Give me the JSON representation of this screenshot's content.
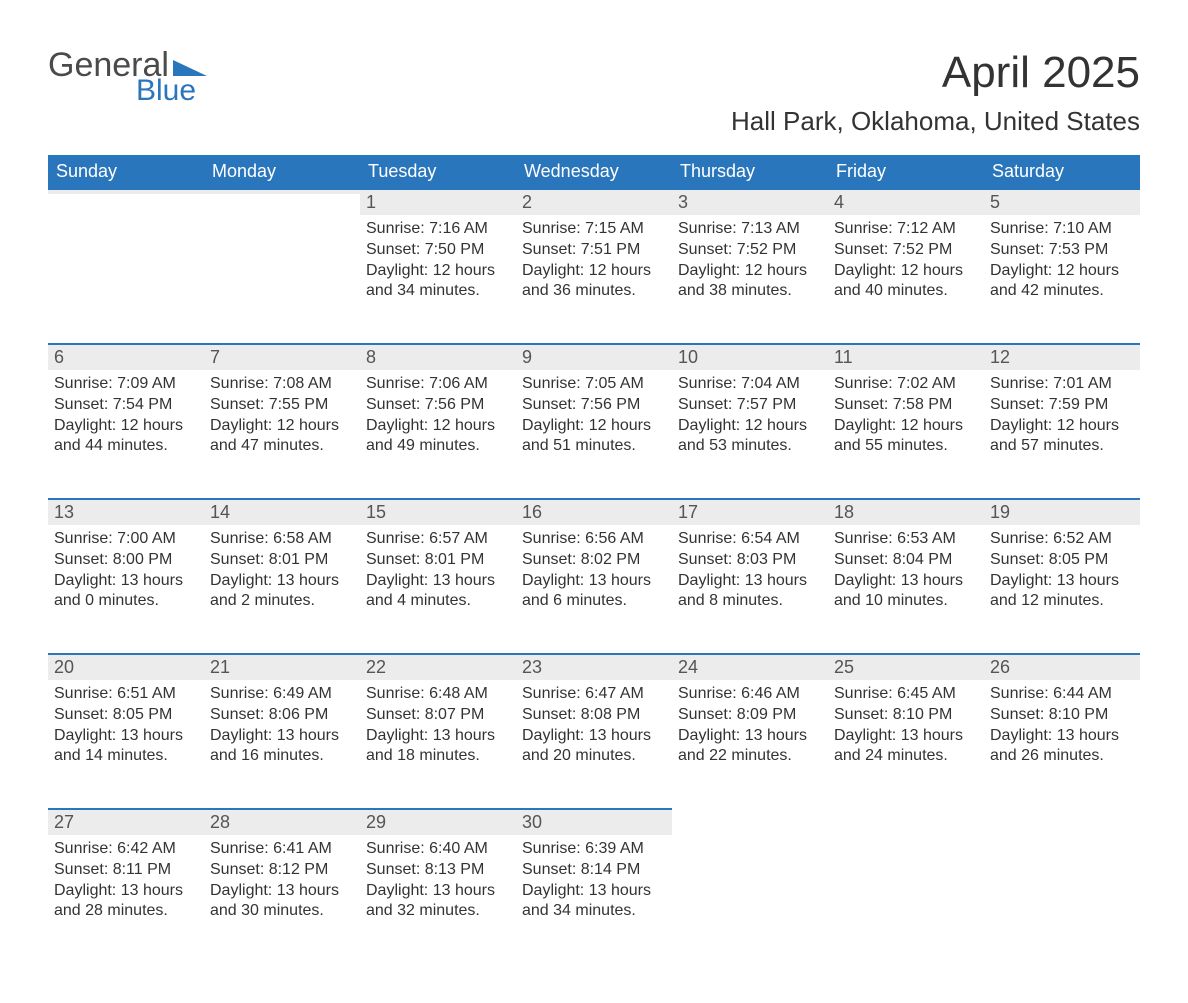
{
  "logo": {
    "word1": "General",
    "word2": "Blue",
    "text_color_general": "#4a4a4a",
    "text_color_blue": "#2a76bd",
    "triangle_color": "#2a76bd"
  },
  "title": "April 2025",
  "location": "Hall Park, Oklahoma, United States",
  "colors": {
    "header_bg": "#2a76bd",
    "header_text": "#ffffff",
    "daynum_bg": "#ececec",
    "daynum_border": "#2a76bd",
    "body_text": "#333333"
  },
  "fonts": {
    "title_size_pt": 33,
    "location_size_pt": 20,
    "header_size_pt": 14,
    "daynum_size_pt": 14,
    "body_size_pt": 12
  },
  "calendar": {
    "structure": "month-grid",
    "columns": [
      "Sunday",
      "Monday",
      "Tuesday",
      "Wednesday",
      "Thursday",
      "Friday",
      "Saturday"
    ],
    "weeks": [
      [
        null,
        null,
        {
          "day": "1",
          "sunrise": "7:16 AM",
          "sunset": "7:50 PM",
          "daylight": "12 hours and 34 minutes."
        },
        {
          "day": "2",
          "sunrise": "7:15 AM",
          "sunset": "7:51 PM",
          "daylight": "12 hours and 36 minutes."
        },
        {
          "day": "3",
          "sunrise": "7:13 AM",
          "sunset": "7:52 PM",
          "daylight": "12 hours and 38 minutes."
        },
        {
          "day": "4",
          "sunrise": "7:12 AM",
          "sunset": "7:52 PM",
          "daylight": "12 hours and 40 minutes."
        },
        {
          "day": "5",
          "sunrise": "7:10 AM",
          "sunset": "7:53 PM",
          "daylight": "12 hours and 42 minutes."
        }
      ],
      [
        {
          "day": "6",
          "sunrise": "7:09 AM",
          "sunset": "7:54 PM",
          "daylight": "12 hours and 44 minutes."
        },
        {
          "day": "7",
          "sunrise": "7:08 AM",
          "sunset": "7:55 PM",
          "daylight": "12 hours and 47 minutes."
        },
        {
          "day": "8",
          "sunrise": "7:06 AM",
          "sunset": "7:56 PM",
          "daylight": "12 hours and 49 minutes."
        },
        {
          "day": "9",
          "sunrise": "7:05 AM",
          "sunset": "7:56 PM",
          "daylight": "12 hours and 51 minutes."
        },
        {
          "day": "10",
          "sunrise": "7:04 AM",
          "sunset": "7:57 PM",
          "daylight": "12 hours and 53 minutes."
        },
        {
          "day": "11",
          "sunrise": "7:02 AM",
          "sunset": "7:58 PM",
          "daylight": "12 hours and 55 minutes."
        },
        {
          "day": "12",
          "sunrise": "7:01 AM",
          "sunset": "7:59 PM",
          "daylight": "12 hours and 57 minutes."
        }
      ],
      [
        {
          "day": "13",
          "sunrise": "7:00 AM",
          "sunset": "8:00 PM",
          "daylight": "13 hours and 0 minutes."
        },
        {
          "day": "14",
          "sunrise": "6:58 AM",
          "sunset": "8:01 PM",
          "daylight": "13 hours and 2 minutes."
        },
        {
          "day": "15",
          "sunrise": "6:57 AM",
          "sunset": "8:01 PM",
          "daylight": "13 hours and 4 minutes."
        },
        {
          "day": "16",
          "sunrise": "6:56 AM",
          "sunset": "8:02 PM",
          "daylight": "13 hours and 6 minutes."
        },
        {
          "day": "17",
          "sunrise": "6:54 AM",
          "sunset": "8:03 PM",
          "daylight": "13 hours and 8 minutes."
        },
        {
          "day": "18",
          "sunrise": "6:53 AM",
          "sunset": "8:04 PM",
          "daylight": "13 hours and 10 minutes."
        },
        {
          "day": "19",
          "sunrise": "6:52 AM",
          "sunset": "8:05 PM",
          "daylight": "13 hours and 12 minutes."
        }
      ],
      [
        {
          "day": "20",
          "sunrise": "6:51 AM",
          "sunset": "8:05 PM",
          "daylight": "13 hours and 14 minutes."
        },
        {
          "day": "21",
          "sunrise": "6:49 AM",
          "sunset": "8:06 PM",
          "daylight": "13 hours and 16 minutes."
        },
        {
          "day": "22",
          "sunrise": "6:48 AM",
          "sunset": "8:07 PM",
          "daylight": "13 hours and 18 minutes."
        },
        {
          "day": "23",
          "sunrise": "6:47 AM",
          "sunset": "8:08 PM",
          "daylight": "13 hours and 20 minutes."
        },
        {
          "day": "24",
          "sunrise": "6:46 AM",
          "sunset": "8:09 PM",
          "daylight": "13 hours and 22 minutes."
        },
        {
          "day": "25",
          "sunrise": "6:45 AM",
          "sunset": "8:10 PM",
          "daylight": "13 hours and 24 minutes."
        },
        {
          "day": "26",
          "sunrise": "6:44 AM",
          "sunset": "8:10 PM",
          "daylight": "13 hours and 26 minutes."
        }
      ],
      [
        {
          "day": "27",
          "sunrise": "6:42 AM",
          "sunset": "8:11 PM",
          "daylight": "13 hours and 28 minutes."
        },
        {
          "day": "28",
          "sunrise": "6:41 AM",
          "sunset": "8:12 PM",
          "daylight": "13 hours and 30 minutes."
        },
        {
          "day": "29",
          "sunrise": "6:40 AM",
          "sunset": "8:13 PM",
          "daylight": "13 hours and 32 minutes."
        },
        {
          "day": "30",
          "sunrise": "6:39 AM",
          "sunset": "8:14 PM",
          "daylight": "13 hours and 34 minutes."
        },
        null,
        null,
        null
      ]
    ],
    "labels": {
      "sunrise": "Sunrise: ",
      "sunset": "Sunset: ",
      "daylight": "Daylight: "
    }
  }
}
